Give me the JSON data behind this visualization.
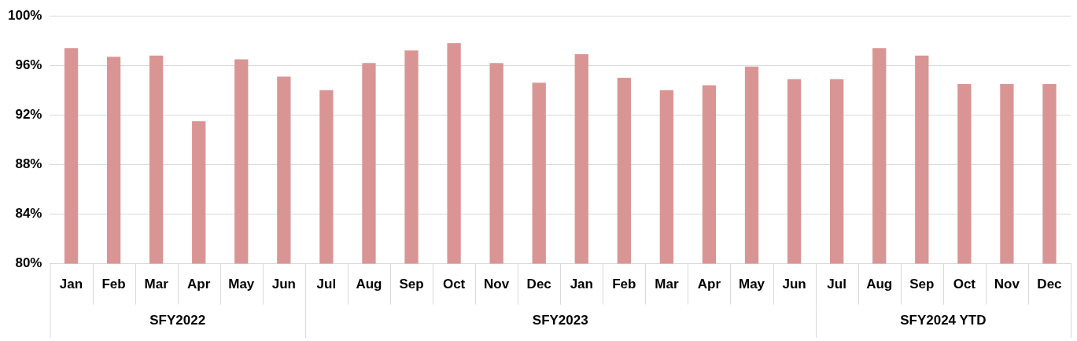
{
  "chart_data": {
    "type": "bar",
    "categories": [
      "Jan",
      "Feb",
      "Mar",
      "Apr",
      "May",
      "Jun",
      "Jul",
      "Aug",
      "Sep",
      "Oct",
      "Nov",
      "Dec",
      "Jan",
      "Feb",
      "Mar",
      "Apr",
      "May",
      "Jun",
      "Jul",
      "Aug",
      "Sep",
      "Oct",
      "Nov",
      "Dec"
    ],
    "values": [
      97.4,
      96.7,
      96.8,
      91.5,
      96.5,
      95.1,
      94.0,
      96.2,
      97.2,
      97.8,
      96.2,
      94.6,
      96.9,
      95.0,
      94.0,
      94.4,
      95.9,
      94.9,
      94.9,
      97.4,
      96.8,
      94.5,
      94.5,
      94.5
    ],
    "color": "#d99594",
    "ylim": [
      80,
      100
    ],
    "yticks": [
      {
        "value": 80,
        "label": "80%"
      },
      {
        "value": 84,
        "label": "84%"
      },
      {
        "value": 88,
        "label": "88%"
      },
      {
        "value": 92,
        "label": "92%"
      },
      {
        "value": 96,
        "label": "96%"
      },
      {
        "value": 100,
        "label": "100%"
      }
    ],
    "grid": "y",
    "annotations": [
      "SFY2022",
      "SFY2023",
      "SFY2024 YTD"
    ]
  }
}
